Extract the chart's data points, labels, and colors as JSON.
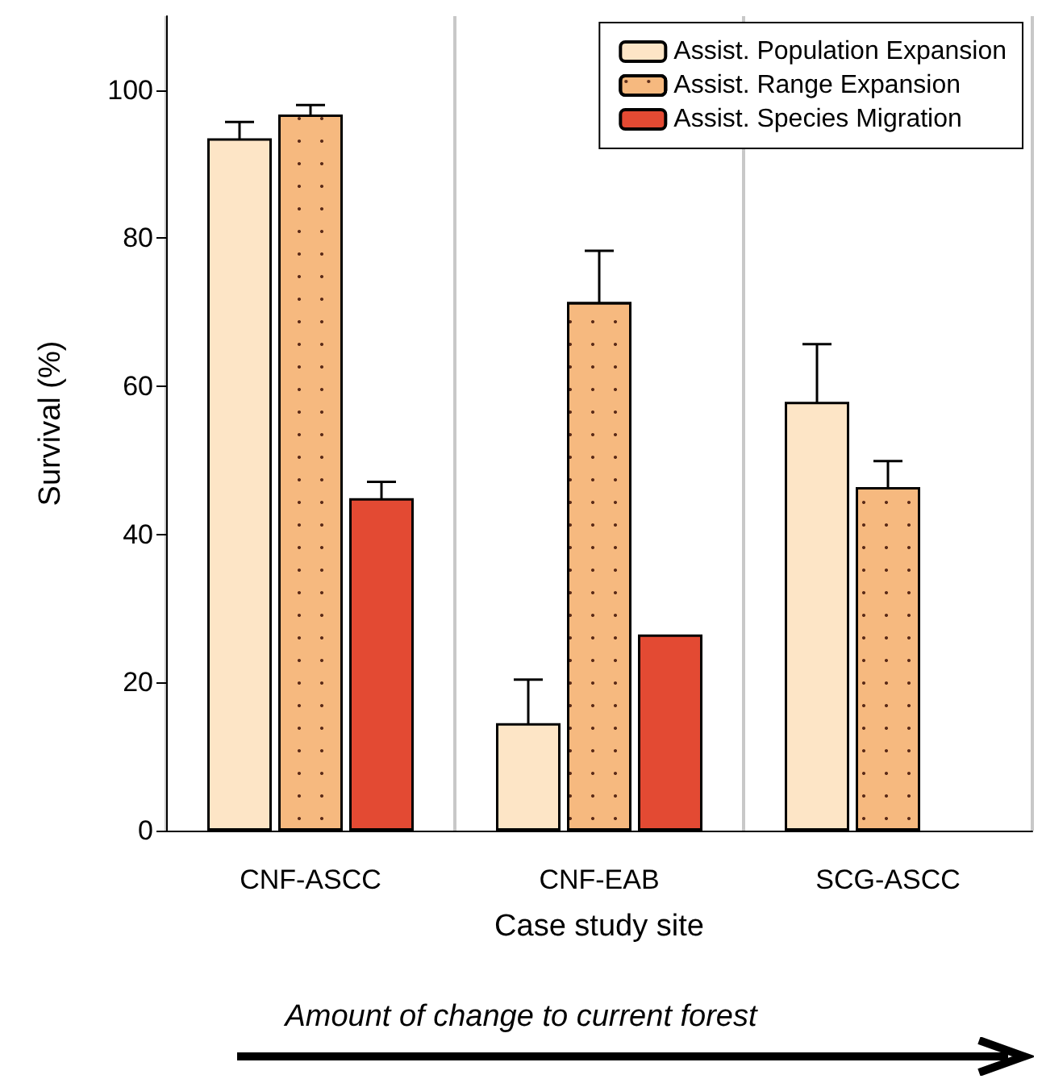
{
  "chart_data": {
    "type": "bar",
    "xlabel": "Case study site",
    "ylabel": "Survival (%)",
    "categories": [
      "CNF-ASCC",
      "CNF-EAB",
      "SCG-ASCC"
    ],
    "series": [
      {
        "name": "Assist. Population Expansion",
        "color": "#fde5c6",
        "values": [
          93.5,
          14.5,
          57.9
        ],
        "errors": [
          2.2,
          5.9,
          7.8
        ]
      },
      {
        "name": "Assist. Range Expansion",
        "color": "#f6b97f",
        "values": [
          96.7,
          71.4,
          46.4
        ],
        "errors": [
          1.3,
          6.9,
          3.5
        ]
      },
      {
        "name": "Assist. Species Migration",
        "color": "#e34a33",
        "values": [
          44.9,
          26.5,
          null
        ],
        "errors": [
          2.2,
          null,
          null
        ]
      }
    ],
    "ylim": [
      0,
      110
    ],
    "yticks": [
      0,
      20,
      40,
      60,
      80,
      100
    ],
    "grid": "x",
    "legend": "top right",
    "annotations": [
      "Amount of change to current forest"
    ]
  }
}
